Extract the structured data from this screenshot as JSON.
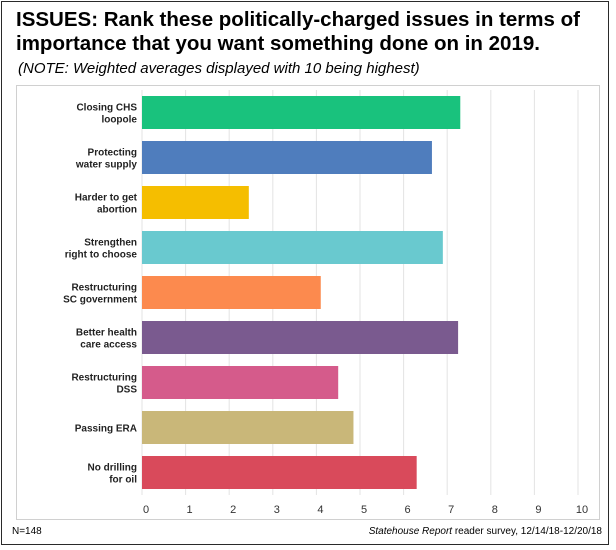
{
  "header": {
    "title": "ISSUES: Rank these politically-charged issues in terms of importance that you want something done on in 2019.",
    "note": "(NOTE: Weighted averages displayed with 10 being highest)"
  },
  "footer": {
    "n": "N=148",
    "source_italic": "Statehouse Report",
    "source_rest": " reader survey, 12/14/18-12/20/18"
  },
  "chart_data": {
    "type": "bar",
    "orientation": "horizontal",
    "categories": [
      [
        "Closing CHS",
        "loopole"
      ],
      [
        "Protecting",
        "water supply"
      ],
      [
        "Harder to get",
        "abortion"
      ],
      [
        "Strengthen",
        "right to choose"
      ],
      [
        "Restructuring",
        "SC government"
      ],
      [
        "Better health",
        "care access"
      ],
      [
        "Restructuring",
        "DSS"
      ],
      [
        "Passing ERA"
      ],
      [
        "No drilling",
        "for oil"
      ]
    ],
    "values": [
      7.3,
      6.65,
      2.45,
      6.9,
      4.1,
      7.25,
      4.5,
      4.85,
      6.3
    ],
    "colors": [
      "#19c27d",
      "#4f7dbd",
      "#f5be00",
      "#69c9cf",
      "#fc8a4e",
      "#7a5a8f",
      "#d55b8b",
      "#c9b779",
      "#d94a5b"
    ],
    "xlim": [
      0,
      10
    ],
    "xticks": [
      "0",
      "1",
      "2",
      "3",
      "4",
      "5",
      "6",
      "7",
      "8",
      "9",
      "10"
    ],
    "grid": true
  }
}
